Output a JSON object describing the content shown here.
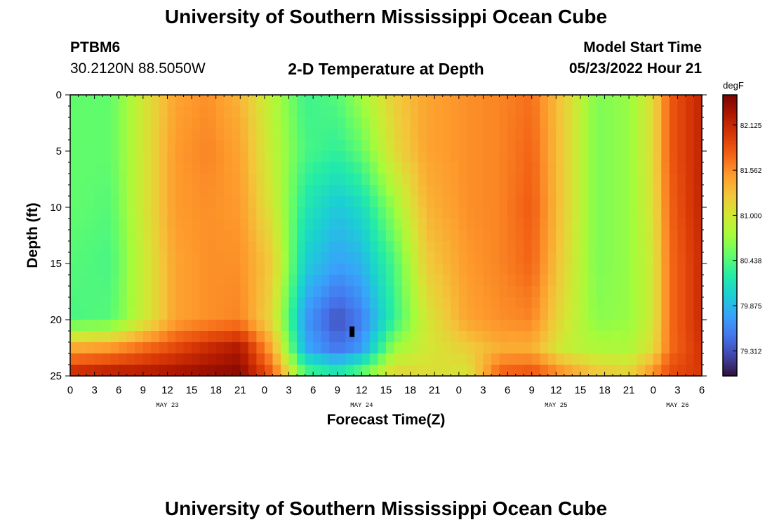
{
  "header": {
    "title": "University of Southern Mississippi Ocean Cube",
    "station_id": "PTBM6",
    "station_coords": "30.2120N  88.5050W",
    "plot_title": "2-D Temperature at Depth",
    "model_start_label": "Model Start Time",
    "model_start_value": "05/23/2022 Hour 21"
  },
  "footer": {
    "title": "University of Southern Mississippi Ocean Cube"
  },
  "chart_data": {
    "type": "heatmap",
    "title": "2-D Temperature at Depth",
    "xlabel": "Forecast Time(Z)",
    "ylabel": "Depth (ft)",
    "x_ticks": [
      "0",
      "3",
      "6",
      "9",
      "12",
      "15",
      "18",
      "21",
      "0",
      "3",
      "6",
      "9",
      "12",
      "15",
      "18",
      "21",
      "0",
      "3",
      "6",
      "9",
      "12",
      "15",
      "18",
      "21",
      "0",
      "3",
      "6"
    ],
    "day_labels": [
      {
        "label": "MAY 23",
        "hour": 12
      },
      {
        "label": "MAY 24",
        "hour": 36
      },
      {
        "label": "MAY 25",
        "hour": 60
      },
      {
        "label": "MAY 26",
        "hour": 75
      }
    ],
    "x_range_hours": [
      0,
      78
    ],
    "y_ticks": [
      0,
      5,
      10,
      15,
      20,
      25
    ],
    "y_range_ft": [
      0,
      25
    ],
    "y_inverted": true,
    "colorbar": {
      "unit": "degF",
      "min": 79.0,
      "max": 82.5,
      "ticks": [
        "82.125",
        "81.562",
        "81.000",
        "80.438",
        "79.875",
        "79.312"
      ],
      "colors": [
        "#30123b",
        "#4145ab",
        "#4675ed",
        "#39a2fc",
        "#1bcfd4",
        "#24eca6",
        "#61fc6c",
        "#a4fc3b",
        "#d1e834",
        "#f3c63a",
        "#fe9b2d",
        "#f36315",
        "#d93806",
        "#b11901",
        "#7a0403"
      ]
    },
    "temperature_field_degF": {
      "depths_ft": [
        0,
        5,
        10,
        15,
        20,
        22.5,
        25
      ],
      "hours": [
        0,
        5,
        9,
        13,
        17,
        21,
        25,
        29,
        33,
        36,
        40,
        44,
        49,
        53,
        57,
        61,
        65,
        69,
        72,
        74,
        78
      ],
      "values": [
        [
          80.5,
          80.5,
          81.0,
          81.45,
          81.55,
          81.35,
          80.85,
          80.35,
          80.45,
          80.75,
          81.2,
          81.45,
          81.55,
          81.6,
          81.7,
          81.2,
          80.6,
          80.7,
          81.1,
          81.8,
          82.15
        ],
        [
          80.5,
          80.5,
          81.0,
          81.5,
          81.6,
          81.45,
          80.9,
          80.4,
          80.3,
          80.5,
          81.1,
          81.45,
          81.55,
          81.6,
          81.75,
          81.2,
          80.6,
          80.7,
          81.1,
          81.8,
          82.15
        ],
        [
          80.5,
          80.45,
          81.0,
          81.5,
          81.55,
          81.5,
          81.0,
          80.2,
          79.95,
          80.1,
          80.7,
          81.35,
          81.55,
          81.6,
          81.8,
          81.2,
          80.6,
          80.7,
          81.05,
          81.75,
          82.15
        ],
        [
          80.45,
          80.4,
          80.95,
          81.45,
          81.55,
          81.55,
          81.2,
          80.0,
          79.75,
          79.85,
          80.4,
          81.2,
          81.5,
          81.6,
          81.75,
          81.15,
          80.6,
          80.7,
          81.0,
          81.7,
          82.1
        ],
        [
          80.4,
          80.45,
          80.95,
          81.45,
          81.55,
          81.6,
          81.1,
          79.7,
          79.3,
          79.55,
          80.3,
          81.0,
          81.45,
          81.55,
          81.6,
          81.05,
          80.65,
          80.7,
          81.0,
          81.7,
          82.1
        ],
        [
          81.4,
          81.5,
          81.7,
          81.9,
          82.1,
          82.25,
          81.4,
          79.8,
          79.5,
          79.7,
          80.7,
          81.0,
          81.2,
          81.4,
          81.4,
          80.95,
          80.8,
          80.8,
          81.1,
          81.7,
          82.05
        ],
        [
          82.2,
          82.3,
          82.3,
          82.35,
          82.4,
          82.45,
          81.8,
          80.5,
          80.3,
          80.6,
          81.2,
          81.1,
          81.0,
          81.8,
          81.9,
          81.6,
          81.3,
          81.2,
          81.6,
          81.9,
          82.0
        ]
      ]
    }
  }
}
